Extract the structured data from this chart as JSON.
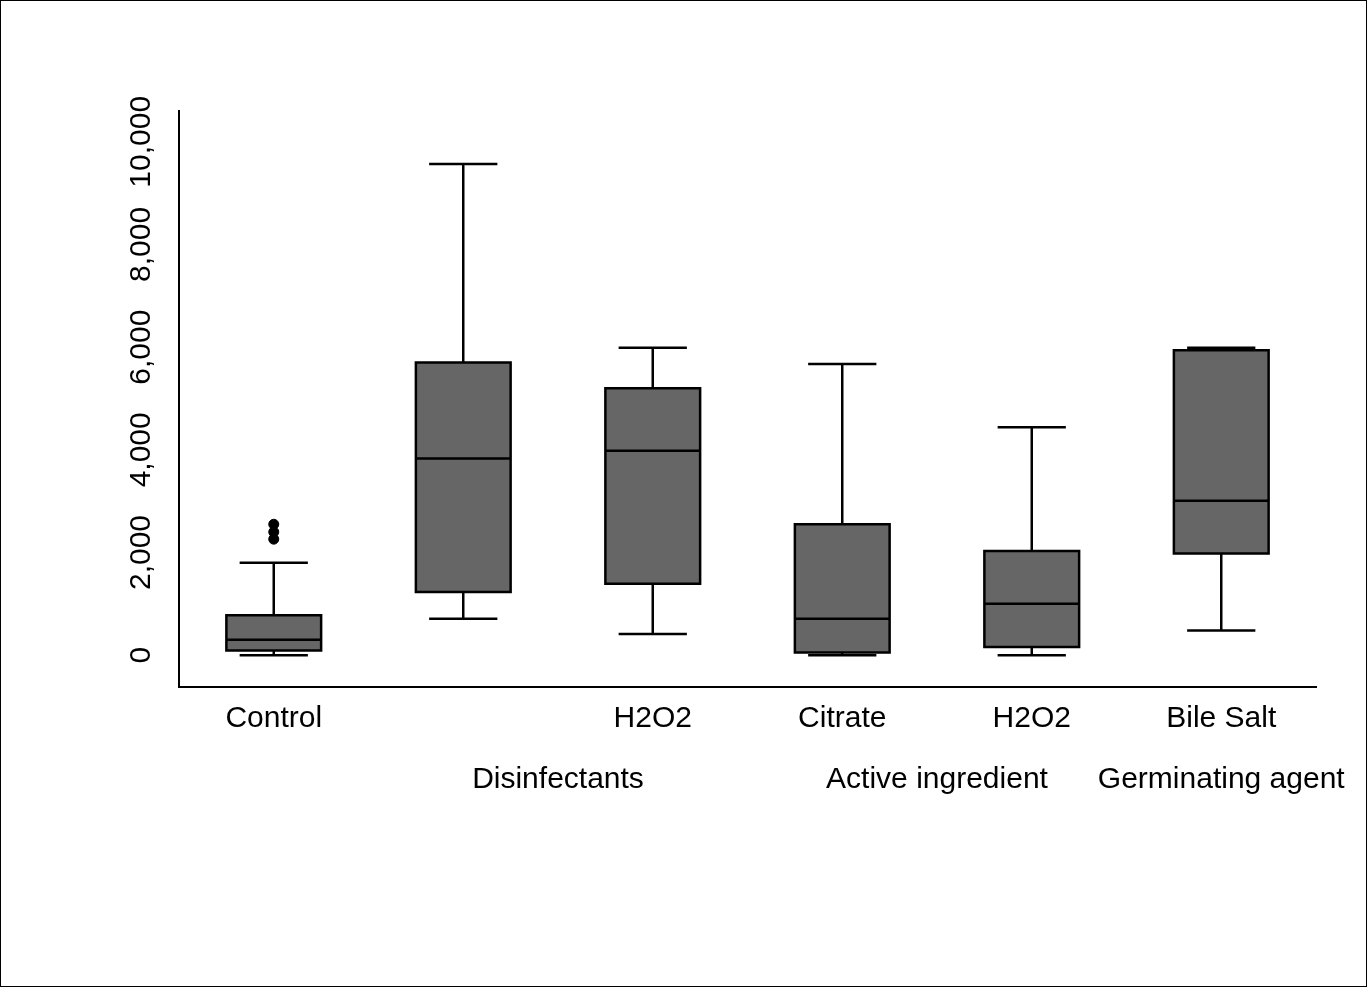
{
  "chart_data": {
    "type": "box",
    "categories": [
      "Control",
      null,
      "H2O2",
      "Citrate",
      "H2O2",
      "Bile Salt"
    ],
    "boxes": [
      {
        "low": 0,
        "q1": 90,
        "median": 300,
        "q3": 780,
        "high": 1800,
        "outliers": [
          2550,
          2400,
          2260
        ]
      },
      {
        "low": 710,
        "q1": 1230,
        "median": 3830,
        "q3": 5700,
        "high": 9570
      },
      {
        "low": 410,
        "q1": 1390,
        "median": 3980,
        "q3": 5200,
        "high": 5990
      },
      {
        "low": 0,
        "q1": 50,
        "median": 710,
        "q3": 2550,
        "high": 5670
      },
      {
        "low": 0,
        "q1": 160,
        "median": 1000,
        "q3": 2030,
        "high": 4440
      },
      {
        "low": 480,
        "q1": 1980,
        "median": 3010,
        "q3": 5940,
        "high": 5990
      }
    ],
    "color": "#666666",
    "ylim": [
      -620,
      10600
    ],
    "yticks": [
      {
        "value": 0,
        "label": "0"
      },
      {
        "value": 2000,
        "label": "2,000"
      },
      {
        "value": 4000,
        "label": "4,000"
      },
      {
        "value": 6000,
        "label": "6,000"
      },
      {
        "value": 8000,
        "label": "8,000"
      },
      {
        "value": 10000,
        "label": "10,000"
      }
    ],
    "annotations": [
      "Disinfectants",
      "Active ingredient",
      "Germinating agent"
    ],
    "grid": false,
    "legend": false
  }
}
